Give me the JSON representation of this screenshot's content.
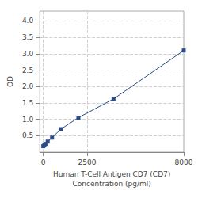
{
  "chart_data": {
    "type": "line",
    "x": [
      0,
      62.5,
      125,
      250,
      500,
      1000,
      2000,
      4000,
      8000
    ],
    "values": [
      0.18,
      0.21,
      0.25,
      0.32,
      0.44,
      0.7,
      1.05,
      1.62,
      3.1
    ],
    "color": "#2a4a8a",
    "marker": "square",
    "xlabel": "Human T-Cell Antigen CD7 (CD7)\nConcentration (pg/ml)",
    "ylabel": "OD",
    "xlim": [
      -200,
      8000
    ],
    "ylim": [
      0,
      4.3
    ],
    "xticks": [
      0,
      2500,
      8000
    ],
    "yticks": [
      0.5,
      {
        "value": 1.0,
        "label": "1.0"
      },
      1.5,
      {
        "value": 2.0,
        "label": "2.0"
      },
      2.5,
      {
        "value": 3.0,
        "label": "3.0"
      },
      3.5,
      {
        "value": 4.0,
        "label": "4.0"
      }
    ],
    "grid": true
  }
}
